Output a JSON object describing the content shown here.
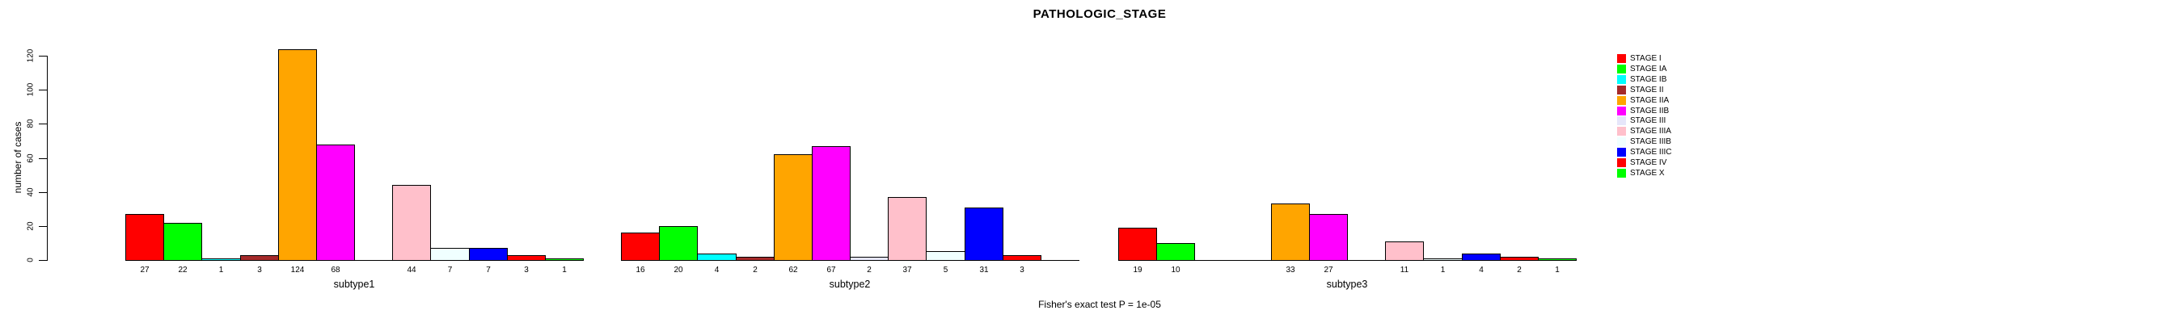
{
  "chart_data": {
    "type": "bar",
    "title": "PATHOLOGIC_STAGE",
    "ylabel": "number of cases",
    "annotation": "Fisher's exact test P = 1e-05",
    "yticks": [
      0,
      20,
      40,
      60,
      80,
      100,
      120
    ],
    "ylim": [
      0,
      120
    ],
    "grid": false,
    "legend_position": "right",
    "stages": [
      {
        "label": "STAGE I",
        "color": "#FF0000"
      },
      {
        "label": "STAGE IA",
        "color": "#00FF00"
      },
      {
        "label": "STAGE IB",
        "color": "#00FFFF"
      },
      {
        "label": "STAGE II",
        "color": "#A52A2A"
      },
      {
        "label": "STAGE IIA",
        "color": "#FFA500"
      },
      {
        "label": "STAGE IIB",
        "color": "#FF00FF"
      },
      {
        "label": "STAGE III",
        "color": "#E6E6FA"
      },
      {
        "label": "STAGE IIIA",
        "color": "#FFC0CB"
      },
      {
        "label": "STAGE IIIB",
        "color": "#F0FFFF"
      },
      {
        "label": "STAGE IIIC",
        "color": "#0000FF"
      },
      {
        "label": "STAGE IV",
        "color": "#FF0000"
      },
      {
        "label": "STAGE X",
        "color": "#00FF00"
      }
    ],
    "groups": [
      {
        "label": "subtype1",
        "values": [
          27,
          22,
          1,
          3,
          124,
          68,
          null,
          44,
          7,
          7,
          3,
          1
        ]
      },
      {
        "label": "subtype2",
        "values": [
          16,
          20,
          4,
          2,
          62,
          67,
          2,
          37,
          5,
          31,
          3,
          null
        ]
      },
      {
        "label": "subtype3",
        "values": [
          19,
          10,
          null,
          null,
          33,
          27,
          null,
          11,
          1,
          4,
          2,
          1
        ]
      }
    ]
  }
}
